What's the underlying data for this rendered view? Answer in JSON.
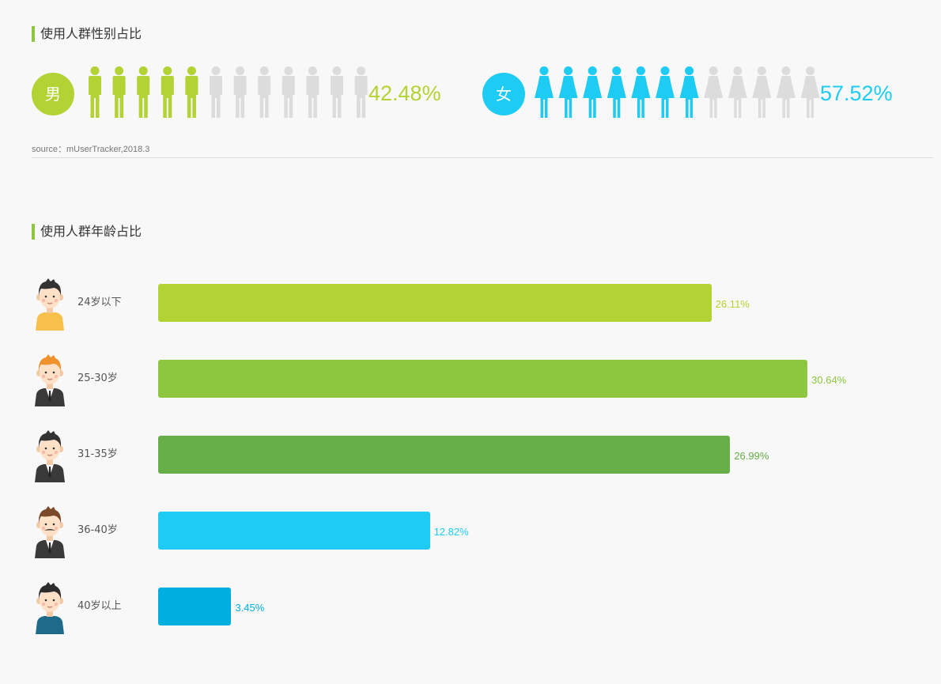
{
  "gender_section": {
    "title": "使用人群性别占比",
    "male": {
      "label": "男",
      "value": 42.48,
      "display": "42.48%",
      "color": "#b3d334"
    },
    "female": {
      "label": "女",
      "value": 57.52,
      "display": "57.52%",
      "color": "#1ecbf2"
    },
    "inactive_color": "#dcdcdc",
    "source": "source：mUserTracker,2018.3"
  },
  "age_section": {
    "title": "使用人群年龄占比"
  },
  "chart_data": [
    {
      "type": "pictogram",
      "categories": [
        "男",
        "女"
      ],
      "values": [
        42.48,
        57.52
      ],
      "title": "使用人群性别占比",
      "unit": "%"
    },
    {
      "type": "bar",
      "orientation": "horizontal",
      "title": "使用人群年龄占比",
      "categories": [
        "24岁以下",
        "25-30岁",
        "31-35岁",
        "36-40岁",
        "40岁以上"
      ],
      "values": [
        26.11,
        30.64,
        26.99,
        12.82,
        3.45
      ],
      "labels": [
        "26.11%",
        "30.64%",
        "26.99%",
        "12.82%",
        "3.45%"
      ],
      "colors": [
        "#b3d334",
        "#8dc63f",
        "#66ae47",
        "#1ecbf2",
        "#00aedf"
      ],
      "label_colors": [
        "#b3d334",
        "#8dc63f",
        "#66ae47",
        "#1ecbf2",
        "#00aedf"
      ],
      "avatars": [
        "young-man-icon",
        "ginger-man-icon",
        "suit-man-icon",
        "mustache-man-icon",
        "older-man-icon"
      ],
      "grid": false,
      "legend": "none"
    }
  ]
}
